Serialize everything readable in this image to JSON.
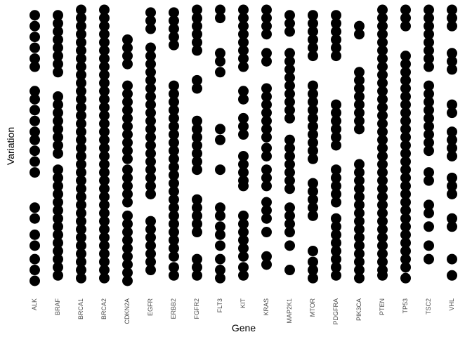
{
  "chart_data": {
    "type": "strip",
    "x_label": "Gene",
    "y_label": "Variation",
    "color": "#000000",
    "ylim": [
      0,
      100
    ],
    "categories": [
      "ALK",
      "BRAF",
      "BRCA1",
      "BRCA2",
      "CDKN2A",
      "EGFR",
      "ERBB2",
      "FGFR2",
      "FLT3",
      "KIT",
      "KRAS",
      "MAP2K1",
      "MTOR",
      "PDGFRA",
      "PIK3CA",
      "PTEN",
      "TP53",
      "TSC2",
      "VHL"
    ],
    "values": [
      [
        98,
        94,
        90,
        86,
        82,
        79,
        70,
        67,
        63,
        59,
        55,
        52,
        48,
        44,
        40,
        27,
        23,
        17,
        13,
        8,
        4,
        0
      ],
      [
        98,
        95,
        92,
        89,
        86,
        83,
        80,
        77,
        68,
        65,
        62,
        59,
        56,
        53,
        50,
        47,
        41,
        38,
        35,
        32,
        29,
        26,
        23,
        20,
        17,
        14,
        11,
        8,
        5,
        2
      ],
      [
        100,
        97,
        94,
        91,
        88,
        85,
        82,
        79,
        76,
        73,
        70,
        67,
        64,
        61,
        58,
        55,
        52,
        49,
        46,
        43,
        40,
        37,
        34,
        31,
        28,
        25,
        22,
        19,
        16,
        13,
        10,
        7,
        4,
        1
      ],
      [
        100,
        97,
        94,
        91,
        88,
        85,
        82,
        79,
        76,
        73,
        70,
        67,
        64,
        61,
        58,
        55,
        52,
        49,
        46,
        43,
        40,
        37,
        34,
        31,
        28,
        25,
        22,
        19,
        16,
        13,
        10,
        7,
        4,
        1
      ],
      [
        89,
        86,
        83,
        80,
        72,
        69,
        66,
        63,
        60,
        57,
        54,
        51,
        48,
        45,
        41,
        38,
        35,
        32,
        29,
        24,
        21,
        18,
        15,
        12,
        9,
        6,
        3,
        0
      ],
      [
        99,
        96,
        93,
        86,
        83,
        80,
        77,
        74,
        71,
        68,
        65,
        62,
        59,
        56,
        53,
        50,
        47,
        44,
        41,
        38,
        35,
        32,
        22,
        19,
        16,
        13,
        10,
        7,
        4
      ],
      [
        99,
        96,
        93,
        90,
        87,
        72,
        69,
        66,
        63,
        60,
        57,
        54,
        51,
        48,
        45,
        42,
        39,
        36,
        33,
        30,
        27,
        24,
        21,
        18,
        15,
        12,
        9,
        5,
        2
      ],
      [
        100,
        97,
        94,
        91,
        88,
        85,
        74,
        71,
        59,
        56,
        53,
        50,
        47,
        44,
        41,
        30,
        27,
        24,
        21,
        18,
        8,
        5,
        2
      ],
      [
        100,
        97,
        84,
        81,
        77,
        56,
        52,
        41,
        27,
        24,
        20,
        17,
        13,
        8,
        4,
        1
      ],
      [
        100,
        97,
        94,
        91,
        88,
        85,
        82,
        79,
        70,
        67,
        60,
        57,
        54,
        46,
        43,
        40,
        37,
        35,
        24,
        21,
        18,
        15,
        12,
        9,
        5,
        2
      ],
      [
        100,
        97,
        94,
        91,
        84,
        81,
        71,
        68,
        65,
        62,
        59,
        56,
        53,
        49,
        46,
        41,
        38,
        35,
        29,
        26,
        23,
        18,
        9,
        6
      ],
      [
        98,
        95,
        92,
        84,
        81,
        78,
        75,
        72,
        69,
        66,
        63,
        60,
        52,
        49,
        46,
        43,
        40,
        37,
        34,
        27,
        24,
        21,
        18,
        13,
        4
      ],
      [
        98,
        95,
        92,
        89,
        86,
        83,
        72,
        69,
        66,
        63,
        60,
        57,
        54,
        51,
        48,
        45,
        36,
        33,
        30,
        27,
        24,
        11,
        7,
        4,
        1
      ],
      [
        98,
        95,
        92,
        89,
        86,
        83,
        65,
        62,
        59,
        56,
        53,
        50,
        41,
        38,
        35,
        32,
        29,
        23,
        20,
        17,
        14,
        11,
        8,
        5,
        2
      ],
      [
        94,
        91,
        77,
        74,
        71,
        68,
        65,
        62,
        59,
        56,
        43,
        40,
        37,
        34,
        31,
        28,
        25,
        22,
        19,
        16,
        13,
        10,
        7,
        4,
        1
      ],
      [
        100,
        97,
        94,
        91,
        88,
        85,
        82,
        79,
        76,
        73,
        70,
        67,
        64,
        61,
        58,
        55,
        52,
        49,
        46,
        43,
        40,
        37,
        34,
        31,
        28,
        25,
        22,
        19,
        16,
        13,
        10,
        7,
        4,
        2
      ],
      [
        100,
        97,
        94,
        83,
        80,
        77,
        74,
        71,
        68,
        65,
        62,
        59,
        56,
        53,
        50,
        47,
        44,
        41,
        38,
        35,
        32,
        29,
        26,
        23,
        20,
        17,
        14,
        11,
        8,
        5,
        1
      ],
      [
        100,
        97,
        94,
        91,
        88,
        85,
        82,
        79,
        72,
        69,
        66,
        63,
        60,
        57,
        54,
        51,
        48,
        40,
        37,
        28,
        25,
        20,
        13,
        8
      ],
      [
        100,
        97,
        94,
        84,
        81,
        78,
        65,
        62,
        55,
        52,
        49,
        46,
        38,
        35,
        32,
        23,
        20,
        8,
        2
      ]
    ]
  }
}
